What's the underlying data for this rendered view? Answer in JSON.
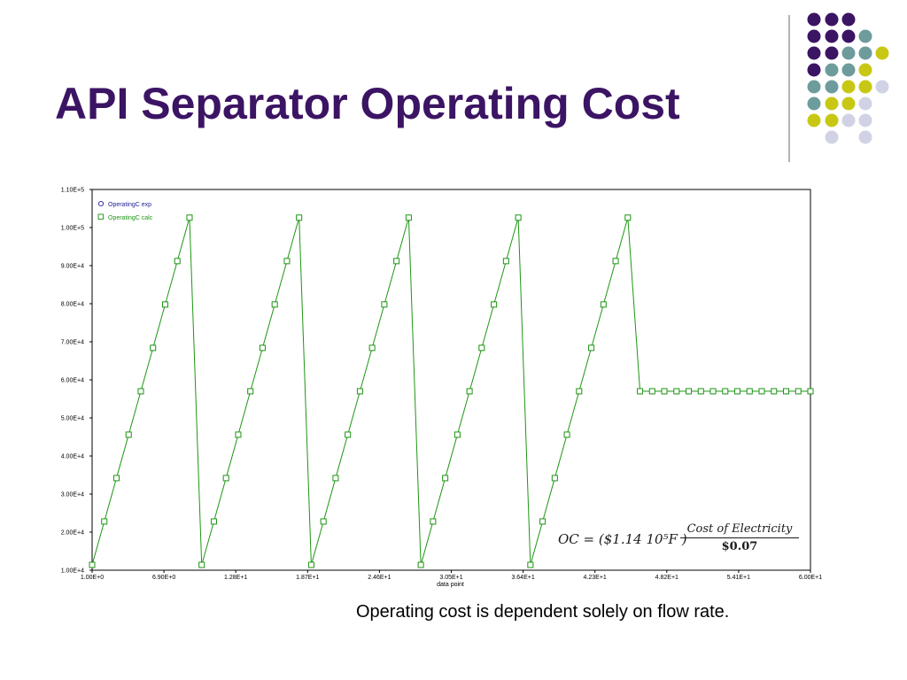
{
  "slide": {
    "title": "API Separator Operating Cost",
    "caption": "Operating cost is dependent solely on flow rate."
  },
  "decor_colors": {
    "purple": "#3c1464",
    "teal": "#6e9c9c",
    "yellow": "#c8c814",
    "lavender": "#d2d2e6",
    "divider": "#808080"
  },
  "formula": {
    "lhs": "OC = ($1.14 10⁵F )",
    "numerator": "Cost of Electricity",
    "denominator": "$0.07"
  },
  "chart_data": {
    "type": "line",
    "title": "",
    "xlabel": "data point",
    "ylabel": "",
    "xlim": [
      1,
      60
    ],
    "ylim": [
      10000,
      110000
    ],
    "grid": false,
    "legend_position": "top-left",
    "x_tick_labels": [
      "1.00E+0",
      "6.90E+0",
      "1.28E+1",
      "1.87E+1",
      "2.46E+1",
      "3.05E+1",
      "3.64E+1",
      "4.23E+1",
      "4.82E+1",
      "5.41E+1",
      "6.00E+1"
    ],
    "x_ticks": [
      1,
      6.9,
      12.8,
      18.7,
      24.6,
      30.5,
      36.4,
      42.3,
      48.2,
      54.1,
      60
    ],
    "y_tick_labels": [
      "1.00E+4",
      "2.00E+4",
      "3.00E+4",
      "4.00E+4",
      "5.00E+4",
      "6.00E+4",
      "7.00E+4",
      "8.00E+4",
      "9.00E+4",
      "1.00E+5",
      "1.10E+5"
    ],
    "y_ticks": [
      10000,
      20000,
      30000,
      40000,
      50000,
      60000,
      70000,
      80000,
      90000,
      100000,
      110000
    ],
    "x": [
      1,
      2,
      3,
      4,
      5,
      6,
      7,
      8,
      9,
      10,
      11,
      12,
      13,
      14,
      15,
      16,
      17,
      18,
      19,
      20,
      21,
      22,
      23,
      24,
      25,
      26,
      27,
      28,
      29,
      30,
      31,
      32,
      33,
      34,
      35,
      36,
      37,
      38,
      39,
      40,
      41,
      42,
      43,
      44,
      45,
      46,
      47,
      48,
      49,
      50,
      51,
      52,
      53,
      54,
      55,
      56,
      57,
      58,
      59,
      60
    ],
    "series": [
      {
        "name": "OperatingC exp",
        "color": "#1e1e96",
        "marker": "circle",
        "values": [
          11400,
          22800,
          34200,
          45600,
          57000,
          68400,
          79800,
          91200,
          102600,
          11400,
          22800,
          34200,
          45600,
          57000,
          68400,
          79800,
          91200,
          102600,
          11400,
          22800,
          34200,
          45600,
          57000,
          68400,
          79800,
          91200,
          102600,
          11400,
          22800,
          34200,
          45600,
          57000,
          68400,
          79800,
          91200,
          102600,
          11400,
          22800,
          34200,
          45600,
          57000,
          68400,
          79800,
          91200,
          102600,
          57000,
          57000,
          57000,
          57000,
          57000,
          57000,
          57000,
          57000,
          57000,
          57000,
          57000,
          57000,
          57000,
          57000,
          57000
        ]
      },
      {
        "name": "OperatingC calc",
        "color": "#1e9614",
        "marker": "square",
        "values": [
          11400,
          22800,
          34200,
          45600,
          57000,
          68400,
          79800,
          91200,
          102600,
          11400,
          22800,
          34200,
          45600,
          57000,
          68400,
          79800,
          91200,
          102600,
          11400,
          22800,
          34200,
          45600,
          57000,
          68400,
          79800,
          91200,
          102600,
          11400,
          22800,
          34200,
          45600,
          57000,
          68400,
          79800,
          91200,
          102600,
          11400,
          22800,
          34200,
          45600,
          57000,
          68400,
          79800,
          91200,
          102600,
          57000,
          57000,
          57000,
          57000,
          57000,
          57000,
          57000,
          57000,
          57000,
          57000,
          57000,
          57000,
          57000,
          57000,
          57000
        ]
      }
    ]
  }
}
